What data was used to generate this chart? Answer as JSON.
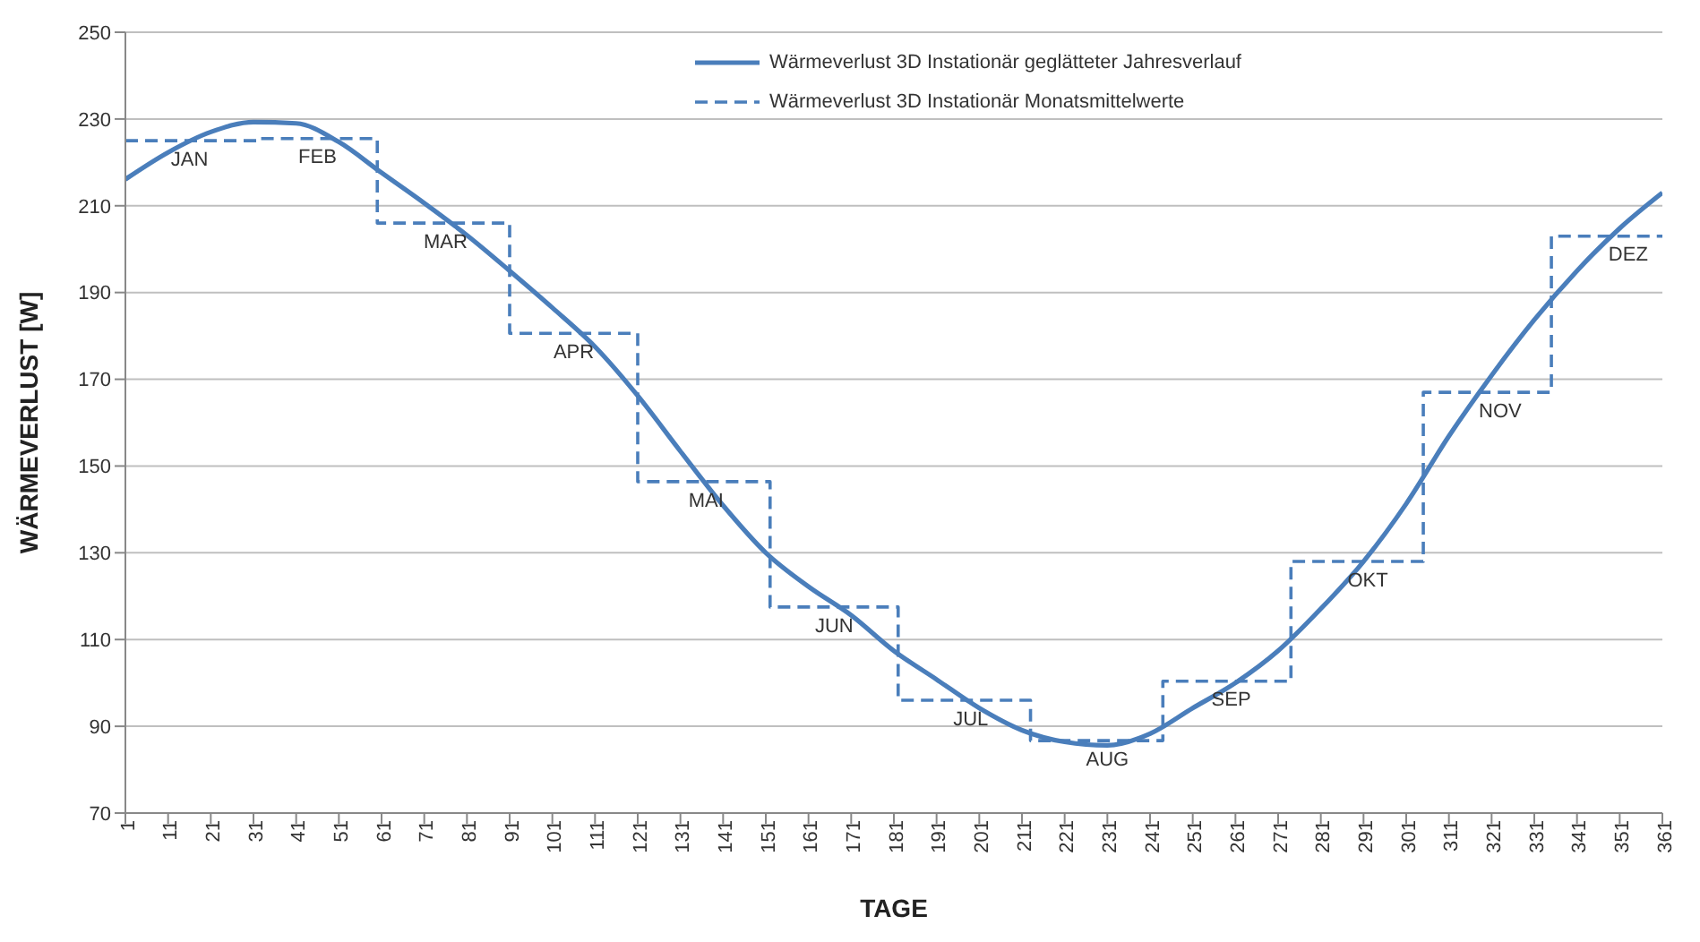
{
  "chart_data": {
    "type": "line",
    "xlabel": "TAGE",
    "ylabel": "WÄRMEVERLUST [W]",
    "xlim": [
      1,
      361
    ],
    "xticks": [
      1,
      11,
      21,
      31,
      41,
      51,
      61,
      71,
      81,
      91,
      101,
      111,
      121,
      131,
      141,
      151,
      161,
      171,
      181,
      191,
      201,
      211,
      221,
      231,
      241,
      251,
      261,
      271,
      281,
      291,
      301,
      311,
      321,
      331,
      341,
      351,
      361
    ],
    "ylim": [
      70,
      250
    ],
    "yticks": [
      70,
      90,
      110,
      130,
      150,
      170,
      190,
      210,
      230,
      250
    ],
    "grid": "y",
    "legend": "top right",
    "marker": "none",
    "series": [
      {
        "name": "Wärmeverlust 3D Instationär geglätteter Jahresverlauf",
        "type": "line",
        "color": "#4a7ebb",
        "line_style": "solid",
        "x": [
          1,
          11,
          21,
          31,
          41,
          51,
          61,
          71,
          81,
          91,
          101,
          111,
          121,
          131,
          141,
          151,
          161,
          171,
          181,
          191,
          201,
          211,
          221,
          231,
          241,
          251,
          261,
          271,
          281,
          291,
          301,
          311,
          321,
          331,
          341,
          351,
          361
        ],
        "values": [
          216.1,
          222.3,
          227,
          229.3,
          229,
          224.7,
          217.6,
          210.6,
          203.2,
          195,
          186.5,
          177.5,
          166.2,
          153.4,
          140.9,
          130,
          122.2,
          115.6,
          107.4,
          100.8,
          94.2,
          89.1,
          86.4,
          85.6,
          88.3,
          94.2,
          100,
          107.4,
          117.1,
          128,
          141.3,
          156.9,
          170.9,
          183.7,
          195,
          204.8,
          213
        ]
      },
      {
        "name": "Wärmeverlust 3D Instationär Monatsmittelwerte",
        "type": "step",
        "color": "#4a7ebb",
        "line_style": "dashed",
        "x": [
          1,
          32,
          60,
          91,
          121,
          152,
          182,
          213,
          244,
          274,
          305,
          335,
          361
        ],
        "values": [
          225,
          225.5,
          206,
          180.6,
          146.4,
          117.5,
          96,
          86.7,
          100.4,
          128,
          167,
          203,
          203
        ]
      }
    ],
    "annotations": [
      {
        "text": "JAN",
        "x": 16,
        "y": 225
      },
      {
        "text": "FEB",
        "x": 46,
        "y": 225.5
      },
      {
        "text": "MAR",
        "x": 76,
        "y": 206
      },
      {
        "text": "APR",
        "x": 106,
        "y": 180.6
      },
      {
        "text": "MAI",
        "x": 137,
        "y": 146.4
      },
      {
        "text": "JUN",
        "x": 167,
        "y": 117.5
      },
      {
        "text": "JUL",
        "x": 199,
        "y": 96
      },
      {
        "text": "AUG",
        "x": 231,
        "y": 86.7
      },
      {
        "text": "SEP",
        "x": 260,
        "y": 100.4
      },
      {
        "text": "OKT",
        "x": 292,
        "y": 128
      },
      {
        "text": "NOV",
        "x": 323,
        "y": 167
      },
      {
        "text": "DEZ",
        "x": 353,
        "y": 203
      }
    ]
  }
}
